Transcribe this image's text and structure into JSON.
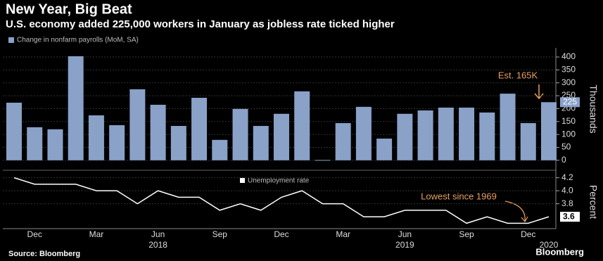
{
  "chart_data": [
    {
      "type": "bar",
      "title": "New Year, Big Beat",
      "subtitle": "U.S. economy added 225,000 workers in January as jobless rate ticked higher",
      "y_label": "Thousands",
      "annotation": "Est. 165K",
      "categories": [
        null,
        "Dec",
        null,
        null,
        "Mar",
        null,
        null,
        "Jun",
        null,
        null,
        "Sep",
        null,
        null,
        "Dec",
        null,
        null,
        "Mar",
        null,
        null,
        "Jun",
        null,
        null,
        "Sep",
        null,
        null,
        "Dec",
        null
      ],
      "series": [
        {
          "name": "Change in nonfarm payrolls (MoM, SA)",
          "color": "#8aa1c8",
          "values": [
            223,
            128,
            120,
            403,
            174,
            136,
            275,
            215,
            133,
            242,
            79,
            199,
            133,
            180,
            267,
            1,
            144,
            207,
            84,
            180,
            193,
            204,
            204,
            185,
            258,
            144,
            225
          ]
        }
      ],
      "ylim": [
        -25,
        430
      ],
      "yticks": [
        0,
        50,
        100,
        150,
        200,
        250,
        300,
        350,
        400
      ],
      "grid": true
    },
    {
      "type": "line",
      "y_label": "Percent",
      "annotation": "Lowest since 1969",
      "source": "Source: Bloomberg",
      "brand": "Bloomberg",
      "categories": [
        null,
        "Dec",
        null,
        null,
        "Mar",
        null,
        null,
        "Jun",
        null,
        null,
        "Sep",
        null,
        null,
        "Dec",
        null,
        null,
        "Mar",
        null,
        null,
        "Jun",
        null,
        null,
        "Sep",
        null,
        null,
        "Dec",
        null
      ],
      "year_labels": [
        null,
        null,
        null,
        null,
        null,
        null,
        null,
        "2018",
        null,
        null,
        null,
        null,
        null,
        null,
        null,
        null,
        null,
        null,
        null,
        "2019",
        null,
        null,
        null,
        null,
        null,
        null,
        "2020"
      ],
      "series": [
        {
          "name": "Unemployment rate",
          "color": "#ffffff",
          "values": [
            4.2,
            4.1,
            4.1,
            4.1,
            4.0,
            4.0,
            3.8,
            4.0,
            3.9,
            3.9,
            3.7,
            3.8,
            3.7,
            3.9,
            4.0,
            3.8,
            3.8,
            3.6,
            3.6,
            3.7,
            3.7,
            3.7,
            3.5,
            3.6,
            3.5,
            3.5,
            3.6
          ]
        }
      ],
      "ylim": [
        3.45,
        4.25
      ],
      "yticks": [
        3.8,
        {
          "value": 4.0,
          "label": "4.0"
        },
        4.2
      ],
      "grid": true
    }
  ]
}
